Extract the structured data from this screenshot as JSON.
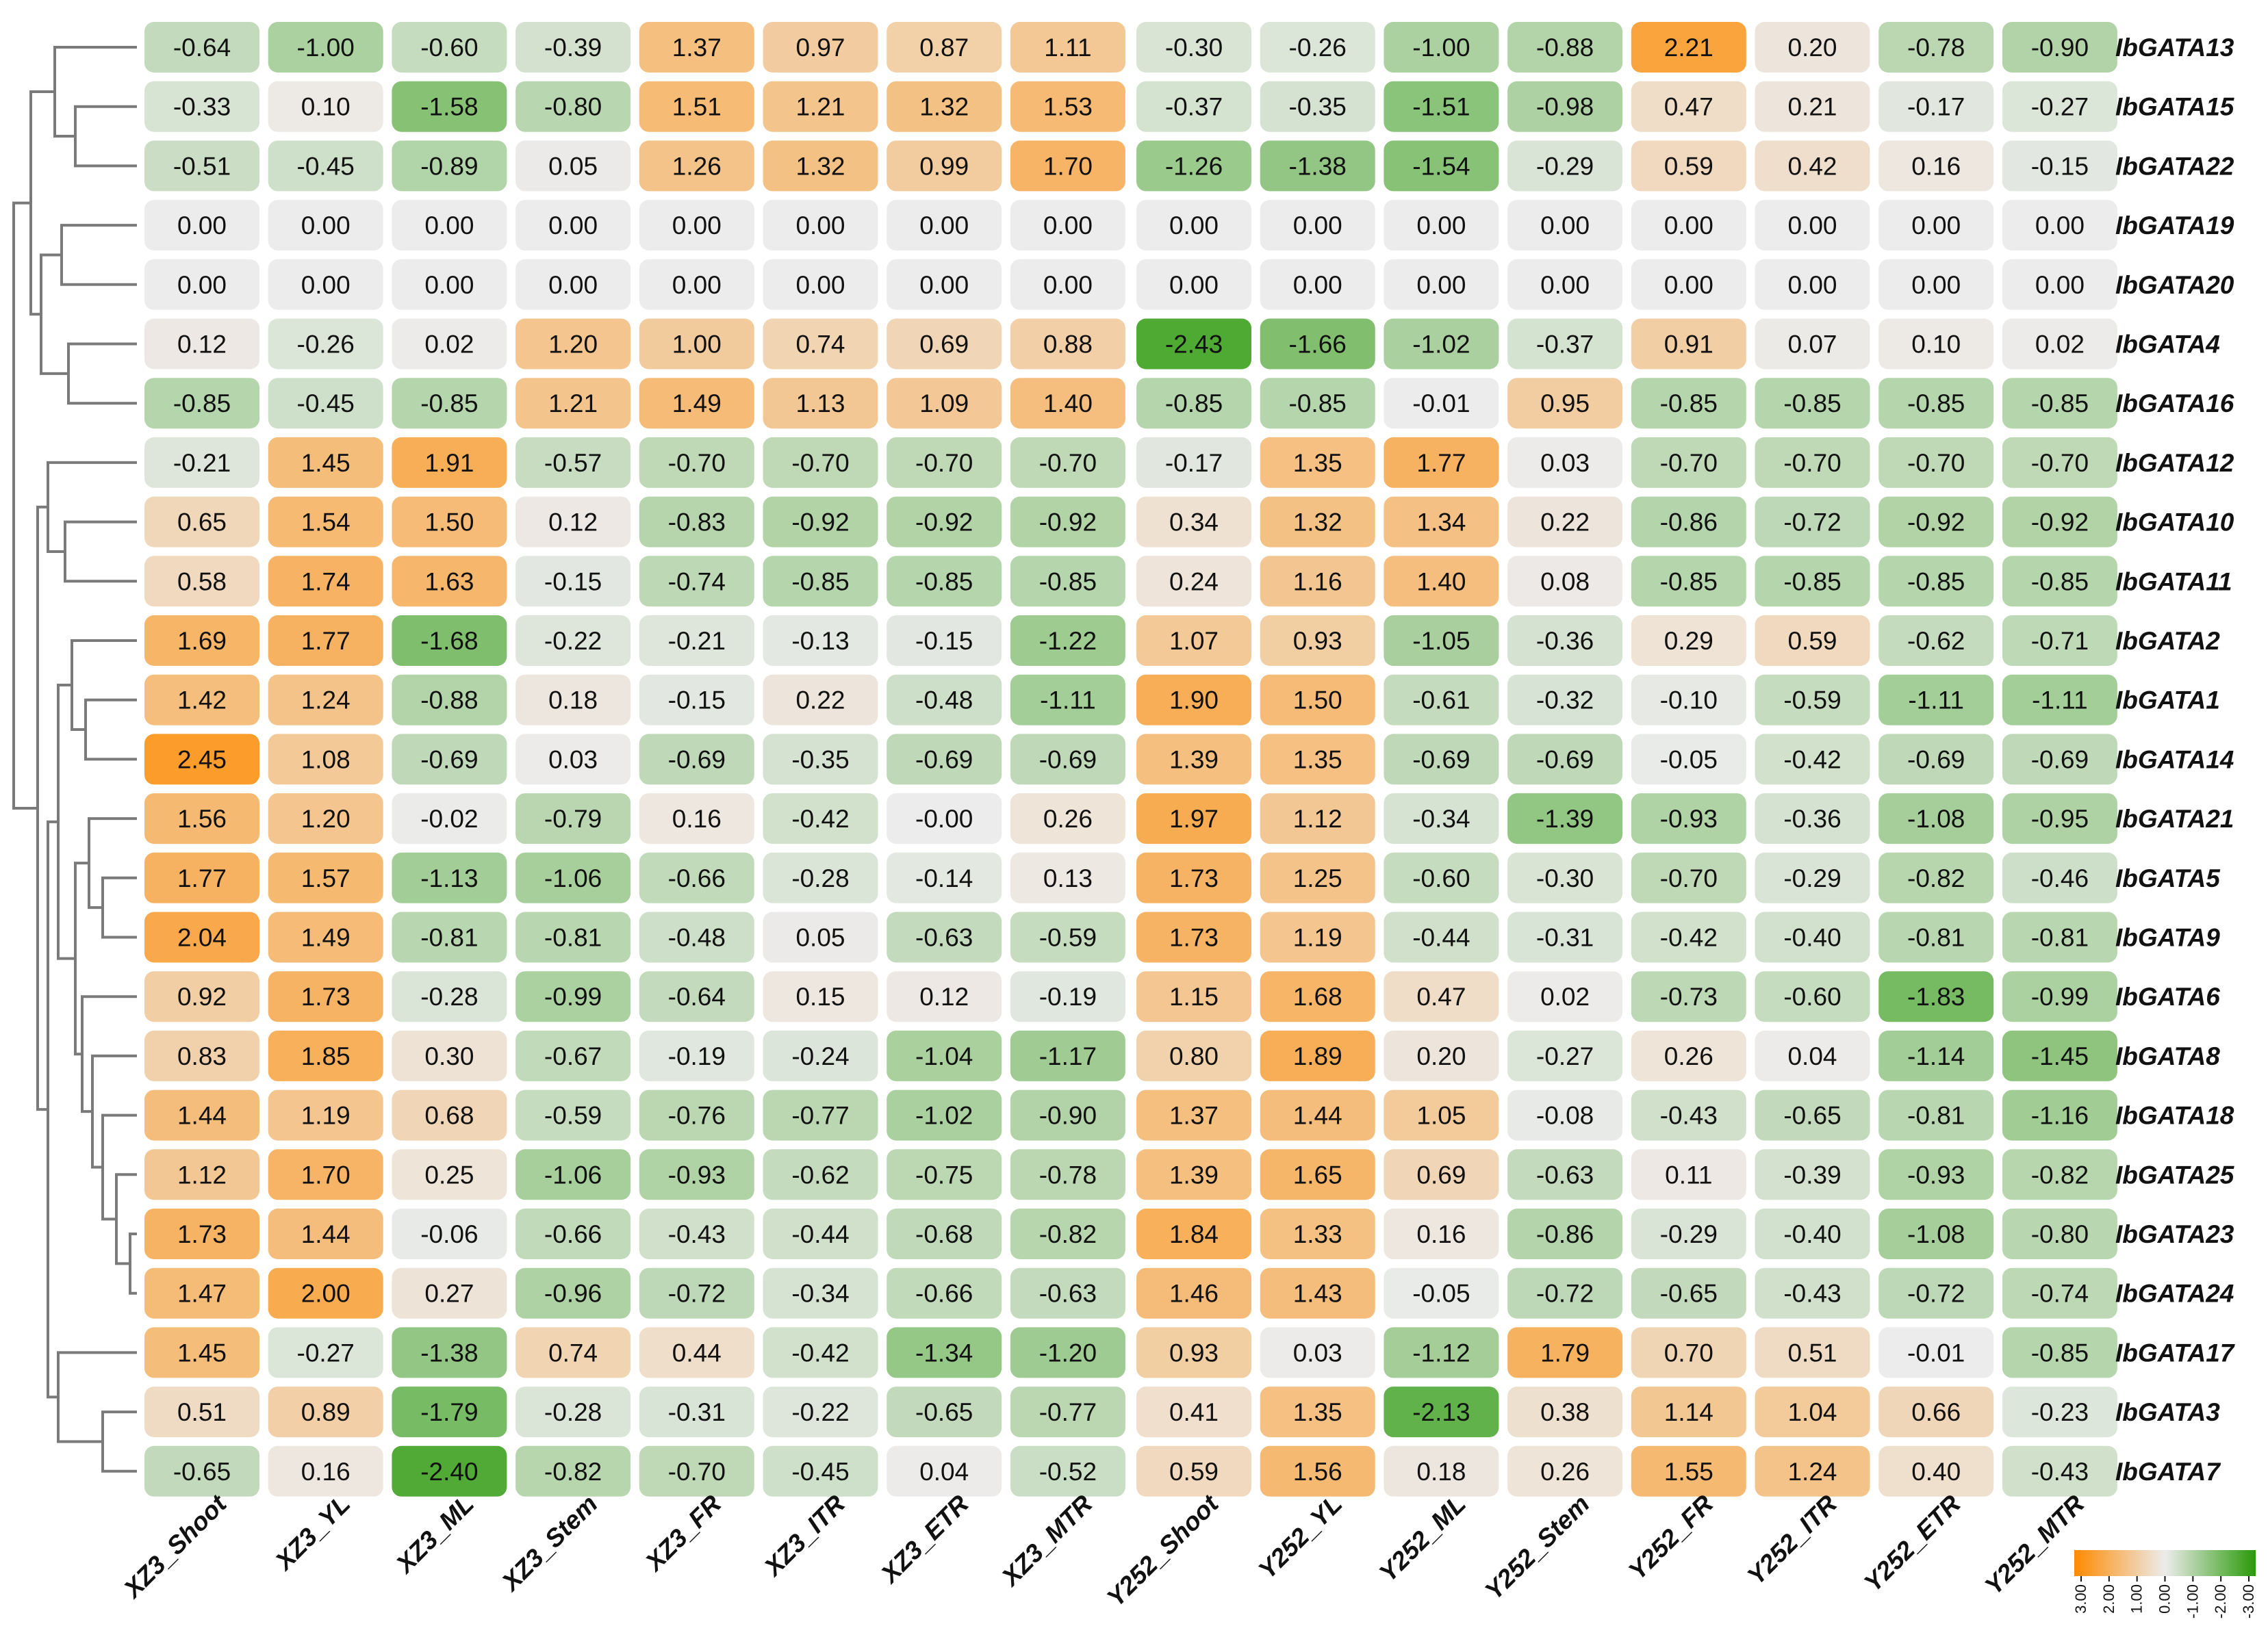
{
  "chart_data": {
    "type": "heatmap",
    "title": "",
    "columns": [
      "XZ3_Shoot",
      "XZ3_YL",
      "XZ3_ML",
      "XZ3_Stem",
      "XZ3_FR",
      "XZ3_ITR",
      "XZ3_ETR",
      "XZ3_MTR",
      "Y252_Shoot",
      "Y252_YL",
      "Y252_ML",
      "Y252_Stem",
      "Y252_FR",
      "Y252_ITR",
      "Y252_ETR",
      "Y252_MTR"
    ],
    "rows": [
      "IbGATA13",
      "IbGATA15",
      "IbGATA22",
      "IbGATA19",
      "IbGATA20",
      "IbGATA4",
      "IbGATA16",
      "IbGATA12",
      "IbGATA10",
      "IbGATA11",
      "IbGATA2",
      "IbGATA1",
      "IbGATA14",
      "IbGATA21",
      "IbGATA5",
      "IbGATA9",
      "IbGATA6",
      "IbGATA8",
      "IbGATA18",
      "IbGATA25",
      "IbGATA23",
      "IbGATA24",
      "IbGATA17",
      "IbGATA3",
      "IbGATA7"
    ],
    "value_labels": [
      [
        "-0.64",
        "-1.00",
        "-0.60",
        "-0.39",
        "1.37",
        "0.97",
        "0.87",
        "1.11",
        "-0.30",
        "-0.26",
        "-1.00",
        "-0.88",
        "2.21",
        "0.20",
        "-0.78",
        "-0.90"
      ],
      [
        "-0.33",
        "0.10",
        "-1.58",
        "-0.80",
        "1.51",
        "1.21",
        "1.32",
        "1.53",
        "-0.37",
        "-0.35",
        "-1.51",
        "-0.98",
        "0.47",
        "0.21",
        "-0.17",
        "-0.27"
      ],
      [
        "-0.51",
        "-0.45",
        "-0.89",
        "0.05",
        "1.26",
        "1.32",
        "0.99",
        "1.70",
        "-1.26",
        "-1.38",
        "-1.54",
        "-0.29",
        "0.59",
        "0.42",
        "0.16",
        "-0.15"
      ],
      [
        "0.00",
        "0.00",
        "0.00",
        "0.00",
        "0.00",
        "0.00",
        "0.00",
        "0.00",
        "0.00",
        "0.00",
        "0.00",
        "0.00",
        "0.00",
        "0.00",
        "0.00",
        "0.00"
      ],
      [
        "0.00",
        "0.00",
        "0.00",
        "0.00",
        "0.00",
        "0.00",
        "0.00",
        "0.00",
        "0.00",
        "0.00",
        "0.00",
        "0.00",
        "0.00",
        "0.00",
        "0.00",
        "0.00"
      ],
      [
        "0.12",
        "-0.26",
        "0.02",
        "1.20",
        "1.00",
        "0.74",
        "0.69",
        "0.88",
        "-2.43",
        "-1.66",
        "-1.02",
        "-0.37",
        "0.91",
        "0.07",
        "0.10",
        "0.02"
      ],
      [
        "-0.85",
        "-0.45",
        "-0.85",
        "1.21",
        "1.49",
        "1.13",
        "1.09",
        "1.40",
        "-0.85",
        "-0.85",
        "-0.01",
        "0.95",
        "-0.85",
        "-0.85",
        "-0.85",
        "-0.85"
      ],
      [
        "-0.21",
        "1.45",
        "1.91",
        "-0.57",
        "-0.70",
        "-0.70",
        "-0.70",
        "-0.70",
        "-0.17",
        "1.35",
        "1.77",
        "0.03",
        "-0.70",
        "-0.70",
        "-0.70",
        "-0.70"
      ],
      [
        "0.65",
        "1.54",
        "1.50",
        "0.12",
        "-0.83",
        "-0.92",
        "-0.92",
        "-0.92",
        "0.34",
        "1.32",
        "1.34",
        "0.22",
        "-0.86",
        "-0.72",
        "-0.92",
        "-0.92"
      ],
      [
        "0.58",
        "1.74",
        "1.63",
        "-0.15",
        "-0.74",
        "-0.85",
        "-0.85",
        "-0.85",
        "0.24",
        "1.16",
        "1.40",
        "0.08",
        "-0.85",
        "-0.85",
        "-0.85",
        "-0.85"
      ],
      [
        "1.69",
        "1.77",
        "-1.68",
        "-0.22",
        "-0.21",
        "-0.13",
        "-0.15",
        "-1.22",
        "1.07",
        "0.93",
        "-1.05",
        "-0.36",
        "0.29",
        "0.59",
        "-0.62",
        "-0.71"
      ],
      [
        "1.42",
        "1.24",
        "-0.88",
        "0.18",
        "-0.15",
        "0.22",
        "-0.48",
        "-1.11",
        "1.90",
        "1.50",
        "-0.61",
        "-0.32",
        "-0.10",
        "-0.59",
        "-1.11",
        "-1.11"
      ],
      [
        "2.45",
        "1.08",
        "-0.69",
        "0.03",
        "-0.69",
        "-0.35",
        "-0.69",
        "-0.69",
        "1.39",
        "1.35",
        "-0.69",
        "-0.69",
        "-0.05",
        "-0.42",
        "-0.69",
        "-0.69"
      ],
      [
        "1.56",
        "1.20",
        "-0.02",
        "-0.79",
        "0.16",
        "-0.42",
        "-0.00",
        "0.26",
        "1.97",
        "1.12",
        "-0.34",
        "-1.39",
        "-0.93",
        "-0.36",
        "-1.08",
        "-0.95"
      ],
      [
        "1.77",
        "1.57",
        "-1.13",
        "-1.06",
        "-0.66",
        "-0.28",
        "-0.14",
        "0.13",
        "1.73",
        "1.25",
        "-0.60",
        "-0.30",
        "-0.70",
        "-0.29",
        "-0.82",
        "-0.46"
      ],
      [
        "2.04",
        "1.49",
        "-0.81",
        "-0.81",
        "-0.48",
        "0.05",
        "-0.63",
        "-0.59",
        "1.73",
        "1.19",
        "-0.44",
        "-0.31",
        "-0.42",
        "-0.40",
        "-0.81",
        "-0.81"
      ],
      [
        "0.92",
        "1.73",
        "-0.28",
        "-0.99",
        "-0.64",
        "0.15",
        "0.12",
        "-0.19",
        "1.15",
        "1.68",
        "0.47",
        "0.02",
        "-0.73",
        "-0.60",
        "-1.83",
        "-0.99"
      ],
      [
        "0.83",
        "1.85",
        "0.30",
        "-0.67",
        "-0.19",
        "-0.24",
        "-1.04",
        "-1.17",
        "0.80",
        "1.89",
        "0.20",
        "-0.27",
        "0.26",
        "0.04",
        "-1.14",
        "-1.45"
      ],
      [
        "1.44",
        "1.19",
        "0.68",
        "-0.59",
        "-0.76",
        "-0.77",
        "-1.02",
        "-0.90",
        "1.37",
        "1.44",
        "1.05",
        "-0.08",
        "-0.43",
        "-0.65",
        "-0.81",
        "-1.16"
      ],
      [
        "1.12",
        "1.70",
        "0.25",
        "-1.06",
        "-0.93",
        "-0.62",
        "-0.75",
        "-0.78",
        "1.39",
        "1.65",
        "0.69",
        "-0.63",
        "0.11",
        "-0.39",
        "-0.93",
        "-0.82"
      ],
      [
        "1.73",
        "1.44",
        "-0.06",
        "-0.66",
        "-0.43",
        "-0.44",
        "-0.68",
        "-0.82",
        "1.84",
        "1.33",
        "0.16",
        "-0.86",
        "-0.29",
        "-0.40",
        "-1.08",
        "-0.80"
      ],
      [
        "1.47",
        "2.00",
        "0.27",
        "-0.96",
        "-0.72",
        "-0.34",
        "-0.66",
        "-0.63",
        "1.46",
        "1.43",
        "-0.05",
        "-0.72",
        "-0.65",
        "-0.43",
        "-0.72",
        "-0.74"
      ],
      [
        "1.45",
        "-0.27",
        "-1.38",
        "0.74",
        "0.44",
        "-0.42",
        "-1.34",
        "-1.20",
        "0.93",
        "0.03",
        "-1.12",
        "1.79",
        "0.70",
        "0.51",
        "-0.01",
        "-0.85"
      ],
      [
        "0.51",
        "0.89",
        "-1.79",
        "-0.28",
        "-0.31",
        "-0.22",
        "-0.65",
        "-0.77",
        "0.41",
        "1.35",
        "-2.13",
        "0.38",
        "1.14",
        "1.04",
        "0.66",
        "-0.23"
      ],
      [
        "-0.65",
        "0.16",
        "-2.40",
        "-0.82",
        "-0.70",
        "-0.45",
        "0.04",
        "-0.52",
        "0.59",
        "1.56",
        "0.18",
        "0.26",
        "1.55",
        "1.24",
        "0.40",
        "-0.43"
      ]
    ],
    "color_scale": {
      "min": -3.0,
      "max": 3.0,
      "low_color": "#2a9a09",
      "mid_color": "#ececec",
      "high_color": "#ff8a00",
      "ticks": [
        "3.00",
        "2.00",
        "1.00",
        "0.00",
        "-1.00",
        "-2.00",
        "-3.00"
      ]
    },
    "legend_position": "bottom-right",
    "dendrogram": "rows-left"
  }
}
